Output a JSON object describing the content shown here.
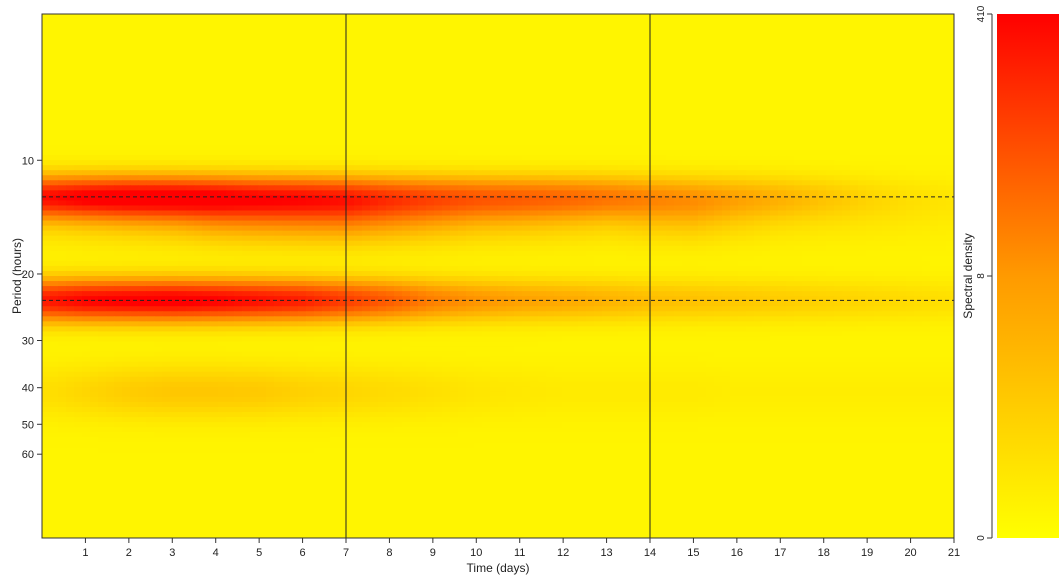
{
  "chart_data": {
    "type": "heatmap",
    "xlabel": "Time (days)",
    "ylabel": "Period (hours)",
    "colorbar_label": "Spectral density",
    "xlim": [
      0,
      21
    ],
    "x_ticks": [
      1,
      2,
      3,
      4,
      5,
      6,
      7,
      8,
      9,
      10,
      11,
      12,
      13,
      14,
      15,
      16,
      17,
      18,
      19,
      20,
      21
    ],
    "y_scale": "log",
    "y_ticks": [
      10,
      20,
      30,
      40,
      50,
      60
    ],
    "colorbar_ticks": [
      "0",
      "8",
      "410"
    ],
    "colorbar_range": [
      0,
      410
    ],
    "colors": {
      "low": "#ffff00",
      "mid": "#ff9a00",
      "high": "#ff0000"
    },
    "vertical_lines_days": [
      7,
      14
    ],
    "dashed_lines_period": [
      12.5,
      23.5
    ],
    "bands": [
      {
        "period": 12.5,
        "intensity_by_day": [
          0.86,
          0.92,
          0.95,
          0.93,
          0.86,
          0.78,
          0.74,
          0.68,
          0.6,
          0.55,
          0.52,
          0.5,
          0.48,
          0.44,
          0.36,
          0.3,
          0.26,
          0.22,
          0.16,
          0.1,
          0.06,
          0.04
        ]
      },
      {
        "period": 23.5,
        "intensity_by_day": [
          0.86,
          0.95,
          0.98,
          1.0,
          0.96,
          0.9,
          0.84,
          0.72,
          0.6,
          0.46,
          0.38,
          0.33,
          0.3,
          0.26,
          0.22,
          0.2,
          0.18,
          0.16,
          0.14,
          0.12,
          0.1,
          0.08
        ]
      },
      {
        "period": 14.2,
        "intensity_by_day": [
          0.1,
          0.14,
          0.18,
          0.22,
          0.3,
          0.34,
          0.36,
          0.38,
          0.32,
          0.26,
          0.2,
          0.18,
          0.15,
          0.12,
          0.16,
          0.18,
          0.12,
          0.08,
          0.06,
          0.05,
          0.04,
          0.03
        ]
      },
      {
        "period": 41,
        "intensity_by_day": [
          0.08,
          0.12,
          0.16,
          0.18,
          0.18,
          0.17,
          0.14,
          0.12,
          0.1,
          0.08,
          0.06,
          0.05,
          0.04,
          0.04,
          0.04,
          0.04,
          0.03,
          0.03,
          0.03,
          0.03,
          0.03,
          0.03
        ]
      }
    ]
  }
}
